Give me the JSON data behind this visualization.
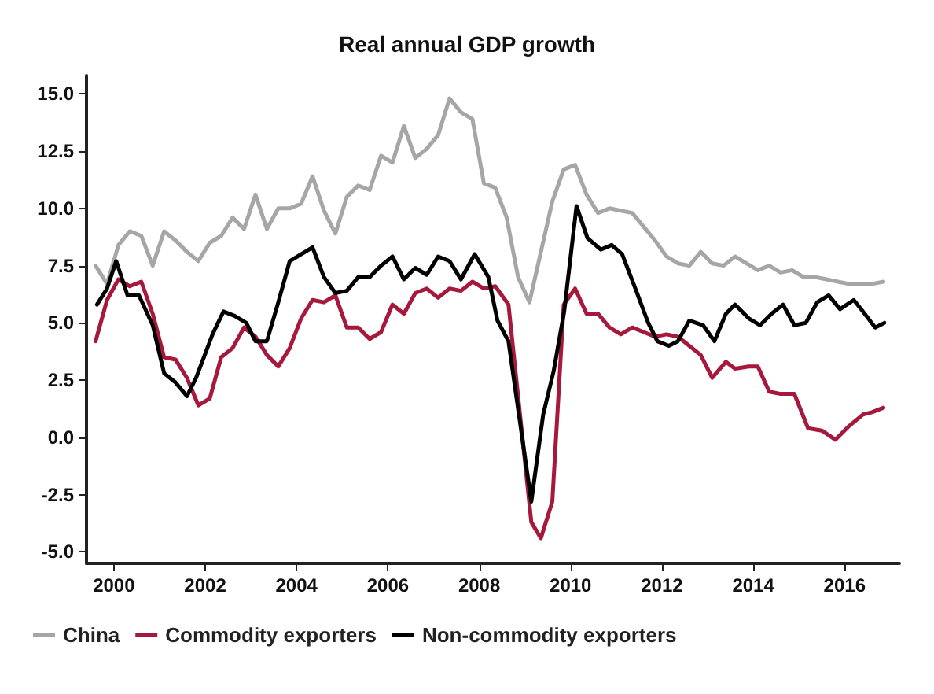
{
  "chart_data": {
    "type": "line",
    "title": "Real annual GDP growth",
    "xlim": [
      1999.4,
      2017.2
    ],
    "xticks": [
      2000,
      2002,
      2004,
      2006,
      2008,
      2010,
      2012,
      2014,
      2016
    ],
    "ylim": [
      -5.5,
      15.8
    ],
    "yticks": [
      {
        "value": -5,
        "label": "-5.0"
      },
      {
        "value": -2.5,
        "label": "-2.5"
      },
      {
        "value": 0,
        "label": "0.0"
      },
      {
        "value": 2.5,
        "label": "2.5"
      },
      {
        "value": 5,
        "label": "5.0"
      },
      {
        "value": 7.5,
        "label": "7.5"
      },
      {
        "value": 10,
        "label": "10.0"
      },
      {
        "value": 12.5,
        "label": "12.5"
      },
      {
        "value": 15,
        "label": "15.0"
      }
    ],
    "grid": false,
    "legend": "bottom left",
    "marker": "none",
    "line_style": "solid",
    "series": [
      {
        "name": "China",
        "color": "#a6a6a6",
        "x": [
          1999.6,
          1999.85,
          2000.1,
          2000.35,
          2000.6,
          2000.85,
          2001.1,
          2001.35,
          2001.6,
          2001.85,
          2002.1,
          2002.35,
          2002.6,
          2002.85,
          2003.1,
          2003.35,
          2003.6,
          2003.85,
          2004.1,
          2004.35,
          2004.6,
          2004.85,
          2005.1,
          2005.35,
          2005.6,
          2005.85,
          2006.1,
          2006.35,
          2006.6,
          2006.85,
          2007.1,
          2007.35,
          2007.6,
          2007.85,
          2008.1,
          2008.35,
          2008.6,
          2008.85,
          2009.1,
          2009.35,
          2009.6,
          2009.85,
          2010.1,
          2010.35,
          2010.6,
          2010.85,
          2011.1,
          2011.35,
          2011.6,
          2011.85,
          2012.1,
          2012.35,
          2012.6,
          2012.85,
          2013.1,
          2013.35,
          2013.6,
          2013.85,
          2014.1,
          2014.35,
          2014.6,
          2014.85,
          2015.1,
          2015.35,
          2015.6,
          2015.85,
          2016.1,
          2016.35,
          2016.6,
          2016.85
        ],
        "values": [
          7.5,
          6.7,
          8.4,
          9.0,
          8.8,
          7.5,
          9.0,
          8.6,
          8.1,
          7.7,
          8.5,
          8.8,
          9.6,
          9.1,
          10.6,
          9.1,
          10.0,
          10.0,
          10.2,
          11.4,
          9.9,
          8.9,
          10.5,
          11.0,
          10.8,
          12.3,
          12.0,
          13.6,
          12.2,
          12.6,
          13.2,
          14.8,
          14.2,
          13.9,
          11.1,
          10.9,
          9.6,
          7.0,
          5.9,
          8.1,
          10.3,
          11.7,
          11.9,
          10.6,
          9.8,
          10.0,
          9.9,
          9.8,
          9.2,
          8.6,
          7.9,
          7.6,
          7.5,
          8.1,
          7.6,
          7.5,
          7.9,
          7.6,
          7.3,
          7.5,
          7.2,
          7.3,
          7.0,
          7.0,
          6.9,
          6.8,
          6.7,
          6.7,
          6.7,
          6.8
        ]
      },
      {
        "name": "Commodity exporters",
        "color": "#a6193c",
        "x": [
          1999.6,
          1999.85,
          2000.1,
          2000.35,
          2000.6,
          2000.85,
          2001.1,
          2001.35,
          2001.6,
          2001.85,
          2002.1,
          2002.35,
          2002.6,
          2002.85,
          2003.1,
          2003.35,
          2003.6,
          2003.85,
          2004.1,
          2004.35,
          2004.6,
          2004.85,
          2005.1,
          2005.35,
          2005.6,
          2005.85,
          2006.1,
          2006.35,
          2006.6,
          2006.85,
          2007.1,
          2007.35,
          2007.6,
          2007.85,
          2008.1,
          2008.35,
          2008.64,
          2009.14,
          2009.35,
          2009.6,
          2009.85,
          2010.1,
          2010.35,
          2010.6,
          2010.85,
          2011.1,
          2011.35,
          2011.6,
          2011.85,
          2012.1,
          2012.35,
          2012.6,
          2012.85,
          2013.1,
          2013.4,
          2013.6,
          2013.9,
          2014.1,
          2014.35,
          2014.6,
          2014.9,
          2015.2,
          2015.5,
          2015.8,
          2016.1,
          2016.4,
          2016.6,
          2016.85
        ],
        "values": [
          4.2,
          6.0,
          6.9,
          6.6,
          6.8,
          5.4,
          3.5,
          3.4,
          2.6,
          1.4,
          1.7,
          3.5,
          3.9,
          4.8,
          4.4,
          3.6,
          3.1,
          3.9,
          5.2,
          6.0,
          5.9,
          6.2,
          4.8,
          4.8,
          4.3,
          4.6,
          5.8,
          5.4,
          6.3,
          6.5,
          6.1,
          6.5,
          6.4,
          6.8,
          6.5,
          6.6,
          5.8,
          -3.7,
          -4.4,
          -2.8,
          5.8,
          6.5,
          5.4,
          5.4,
          4.8,
          4.5,
          4.8,
          4.6,
          4.4,
          4.5,
          4.4,
          4.0,
          3.6,
          2.6,
          3.3,
          3.0,
          3.1,
          3.1,
          2.0,
          1.9,
          1.9,
          0.4,
          0.3,
          -0.1,
          0.5,
          1.0,
          1.1,
          1.3
        ]
      },
      {
        "name": "Non-commodity exporters",
        "color": "#000000",
        "x": [
          1999.63,
          1999.85,
          2000.05,
          2000.3,
          2000.55,
          2000.85,
          2001.1,
          2001.35,
          2001.6,
          2001.8,
          2002.16,
          2002.4,
          2002.65,
          2002.9,
          2003.1,
          2003.35,
          2003.6,
          2003.85,
          2004.1,
          2004.35,
          2004.6,
          2004.85,
          2005.1,
          2005.35,
          2005.6,
          2005.85,
          2006.1,
          2006.35,
          2006.6,
          2006.85,
          2007.1,
          2007.35,
          2007.6,
          2007.9,
          2008.2,
          2008.4,
          2008.64,
          2009.14,
          2009.4,
          2009.63,
          2009.86,
          2010.13,
          2010.37,
          2010.66,
          2010.9,
          2011.13,
          2011.4,
          2011.7,
          2011.9,
          2012.15,
          2012.35,
          2012.6,
          2012.9,
          2013.15,
          2013.4,
          2013.6,
          2013.9,
          2014.15,
          2014.4,
          2014.65,
          2014.9,
          2015.15,
          2015.4,
          2015.65,
          2015.9,
          2016.2,
          2016.4,
          2016.67,
          2016.87
        ],
        "values": [
          5.8,
          6.5,
          7.7,
          6.2,
          6.2,
          4.9,
          2.8,
          2.4,
          1.8,
          2.6,
          4.5,
          5.5,
          5.3,
          5.0,
          4.2,
          4.2,
          5.9,
          7.7,
          8.0,
          8.3,
          7.0,
          6.3,
          6.4,
          7.0,
          7.0,
          7.5,
          7.9,
          6.9,
          7.4,
          7.1,
          7.9,
          7.7,
          6.9,
          8.0,
          7.0,
          5.1,
          4.2,
          -2.8,
          1.0,
          2.9,
          5.5,
          10.1,
          8.7,
          8.2,
          8.4,
          8.0,
          6.6,
          5.0,
          4.2,
          4.0,
          4.2,
          5.1,
          4.9,
          4.2,
          5.4,
          5.8,
          5.2,
          4.9,
          5.4,
          5.8,
          4.9,
          5.0,
          5.9,
          6.2,
          5.6,
          6.0,
          5.5,
          4.8,
          5.0
        ]
      }
    ]
  }
}
